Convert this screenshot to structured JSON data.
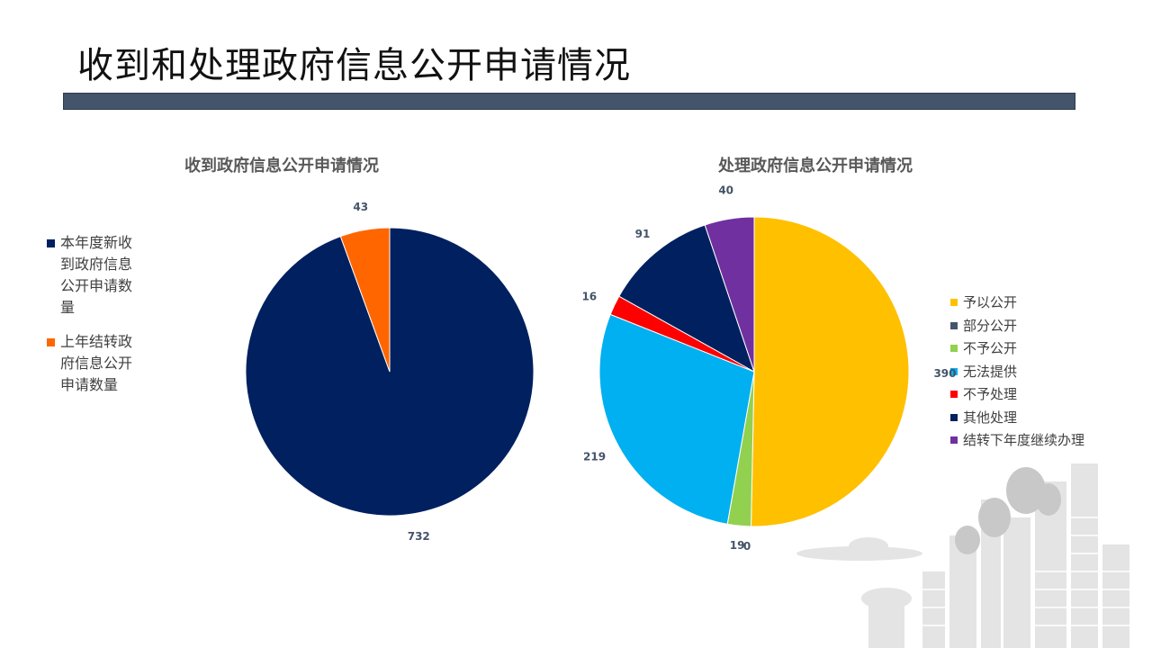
{
  "slide": {
    "title": "收到和处理政府信息公开申请情况"
  },
  "colors": {
    "title_bar": "#44546a",
    "label_text": "#44546a"
  },
  "chart_data": [
    {
      "type": "pie",
      "title": "收到政府信息公开申请情况",
      "legend_position": "left",
      "slices": [
        {
          "label": "本年度新收到政府信息公开申请数量",
          "value": 732,
          "color": "#002060"
        },
        {
          "label": "上年结转政府信息公开申请数量",
          "value": 43,
          "color": "#ff6600"
        }
      ]
    },
    {
      "type": "pie",
      "title": "处理政府信息公开申请情况",
      "legend_position": "right",
      "slices": [
        {
          "label": "予以公开",
          "value": 390,
          "color": "#ffc000"
        },
        {
          "label": "部分公开",
          "value": 0,
          "color": "#44546a"
        },
        {
          "label": "不予公开",
          "value": 19,
          "color": "#92d050"
        },
        {
          "label": "无法提供",
          "value": 219,
          "color": "#00b0f0"
        },
        {
          "label": "不予处理",
          "value": 16,
          "color": "#ff0000"
        },
        {
          "label": "其他处理",
          "value": 91,
          "color": "#002060"
        },
        {
          "label": "结转下年度继续办理",
          "value": 40,
          "color": "#7030a0"
        }
      ]
    }
  ]
}
